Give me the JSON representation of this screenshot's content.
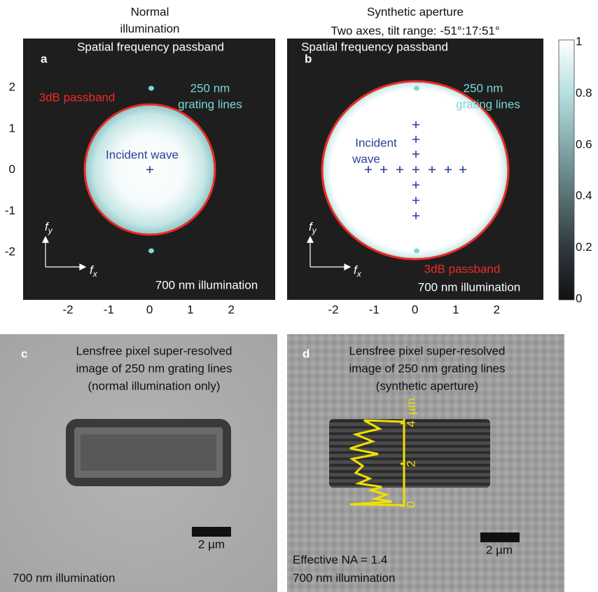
{
  "headers": {
    "a": [
      "Normal",
      "illumination"
    ],
    "b": [
      "Synthetic aperture",
      "Two axes, tilt range: -51°:17:51°"
    ]
  },
  "panel_a": {
    "label": "a",
    "title": "Spatial frequency passband",
    "grating": [
      "250 nm",
      "grating lines"
    ],
    "passband": "3dB passband",
    "incident": "Incident wave",
    "fy": "f",
    "fy_sub": "y",
    "fx": "f",
    "fx_sub": "x",
    "illumination": "700 nm illumination",
    "yticks": [
      "2",
      "1",
      "0",
      "-1",
      "-2"
    ],
    "xticks": [
      "-2",
      "-1",
      "0",
      "1",
      "2"
    ]
  },
  "panel_b": {
    "label": "b",
    "title": "Spatial frequency passband",
    "grating": [
      "250 nm",
      "grating lines"
    ],
    "passband": "3dB passband",
    "incident": [
      "Incident",
      "wave"
    ],
    "fy": "f",
    "fy_sub": "y",
    "fx": "f",
    "fx_sub": "x",
    "illumination": "700 nm illumination",
    "xticks": [
      "-2",
      "-1",
      "0",
      "1",
      "2"
    ]
  },
  "colorbar": {
    "ticks": [
      "1",
      "0.8",
      "0.6",
      "0.4",
      "0.2",
      "0"
    ]
  },
  "panel_c": {
    "label": "c",
    "caption": [
      "Lensfree pixel super-resolved",
      "image of 250 nm grating lines",
      "(normal illumination only)"
    ],
    "scale": "2 µm",
    "illumination": "700 nm illumination"
  },
  "panel_d": {
    "label": "d",
    "caption": [
      "Lensfree pixel super-resolved",
      "image of 250 nm grating lines",
      "(synthetic aperture)"
    ],
    "scale": "2 µm",
    "na": "Effective NA = 1.4",
    "illumination": "700 nm illumination",
    "profile_ticks": [
      "0",
      "2",
      "4"
    ],
    "profile_unit": "µm"
  }
}
